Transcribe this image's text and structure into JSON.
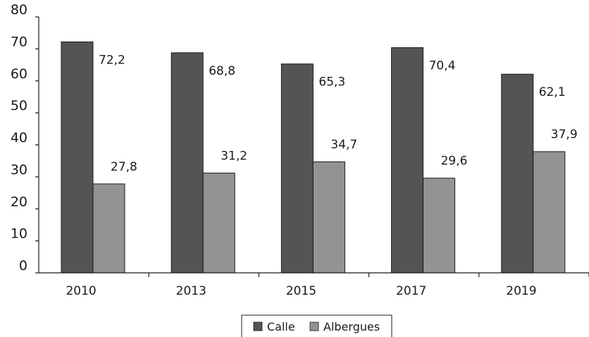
{
  "chart_data": {
    "type": "bar",
    "categories": [
      "2010",
      "2013",
      "2015",
      "2017",
      "2019"
    ],
    "series": [
      {
        "name": "Calle",
        "values": [
          72.2,
          68.8,
          65.3,
          70.4,
          62.1
        ],
        "labels": [
          "72,2",
          "68,8",
          "65,3",
          "70,4",
          "62,1"
        ],
        "color": "#545454"
      },
      {
        "name": "Albergues",
        "values": [
          27.8,
          31.2,
          34.7,
          29.6,
          37.9
        ],
        "labels": [
          "27,8",
          "31,2",
          "34,7",
          "29,6",
          "37,9"
        ],
        "color": "#939393"
      }
    ],
    "yticks": [
      "0",
      "10",
      "20",
      "30",
      "40",
      "50",
      "60",
      "70",
      "80"
    ],
    "ylim": [
      0,
      80
    ],
    "legend": "bottom-center",
    "grid": false,
    "title": "",
    "xlabel": "",
    "ylabel": ""
  }
}
